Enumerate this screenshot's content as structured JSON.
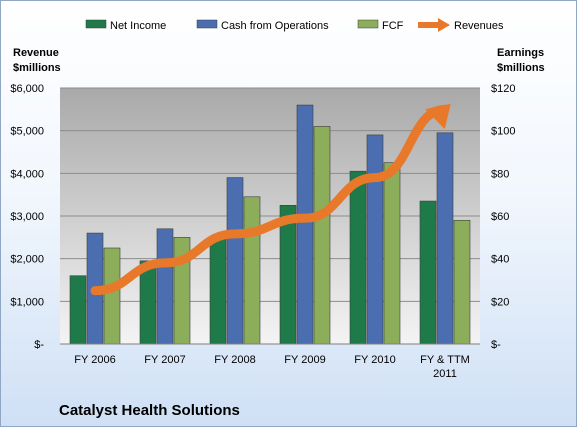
{
  "chart_data": {
    "type": "bar",
    "title": "Catalyst Health Solutions",
    "categories": [
      "FY 2006",
      "FY 2007",
      "FY 2008",
      "FY 2009",
      "FY 2010",
      "FY & TTM 2011"
    ],
    "categories_lines": [
      [
        "FY 2006"
      ],
      [
        "FY 2007"
      ],
      [
        "FY 2008"
      ],
      [
        "FY 2009"
      ],
      [
        "FY 2010"
      ],
      [
        "FY & TTM",
        "2011"
      ]
    ],
    "left_axis": {
      "label_lines": [
        "Revenue",
        "$millions"
      ],
      "ylim": [
        0,
        6000
      ],
      "ticks": [
        0,
        1000,
        2000,
        3000,
        4000,
        5000,
        6000
      ],
      "tick_labels": [
        "$-",
        "$1,000",
        "$2,000",
        "$3,000",
        "$4,000",
        "$5,000",
        "$6,000"
      ]
    },
    "right_axis": {
      "label_lines": [
        "Earnings",
        "$millions"
      ],
      "ylim": [
        0,
        120
      ],
      "ticks": [
        0,
        20,
        40,
        60,
        80,
        100,
        120
      ],
      "tick_labels": [
        "$-",
        "$20",
        "$40",
        "$60",
        "$80",
        "$100",
        "$120"
      ]
    },
    "series": [
      {
        "name": "Net Income",
        "axis": "right",
        "kind": "bar",
        "color": "#1f7a4a",
        "values": [
          32,
          39,
          50,
          65,
          81,
          67
        ]
      },
      {
        "name": "Cash from Operations",
        "axis": "right",
        "kind": "bar",
        "color": "#4a6eb0",
        "values": [
          52,
          54,
          78,
          112,
          98,
          99
        ]
      },
      {
        "name": "FCF",
        "axis": "right",
        "kind": "bar",
        "color": "#8cae5a",
        "values": [
          45,
          50,
          69,
          102,
          85,
          58
        ]
      },
      {
        "name": "Revenues",
        "axis": "left",
        "kind": "arrow",
        "color": "#e8792a",
        "values": [
          1250,
          1900,
          2580,
          2950,
          3900,
          5500
        ]
      }
    ],
    "grid": true,
    "legend_position": "top"
  }
}
